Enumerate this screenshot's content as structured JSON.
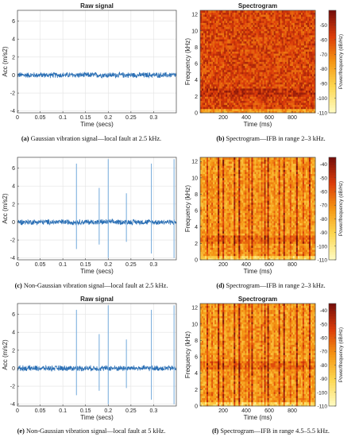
{
  "colors": {
    "signal": "#2a6fb5",
    "spec_high": "#7a1a10",
    "spec_low": "#fff2a8"
  },
  "panels": [
    {
      "caption_tag": "(a)",
      "caption_text": "Gaussian vibration signal—local fault at 2.5 kHz."
    },
    {
      "caption_tag": "(b)",
      "caption_text": "Spectrogram—IFB in range 2–3 kHz."
    },
    {
      "caption_tag": "(c)",
      "caption_text": "Non-Gaussian vibration signal—local fault at 2.5 kHz."
    },
    {
      "caption_tag": "(d)",
      "caption_text": "Spectrogram—IFB in range 2–3 kHz."
    },
    {
      "caption_tag": "(e)",
      "caption_text": "Non-Gaussian vibration signal—local fault at 5 kHz."
    },
    {
      "caption_tag": "(f)",
      "caption_text": "Spectrogram—IFB in range 4.5–5.5 kHz."
    }
  ],
  "chart_data": [
    {
      "id": "a",
      "type": "line",
      "title": "Raw signal",
      "xlabel": "Time (secs)",
      "ylabel": "Acc (m/s2)",
      "xlim": [
        0,
        0.35
      ],
      "ylim": [
        -4.2,
        7.2
      ],
      "xticks": [
        0,
        0.05,
        0.1,
        0.15,
        0.2,
        0.25,
        0.3
      ],
      "yticks": [
        -4,
        -2,
        0,
        2,
        4,
        6
      ],
      "grid": true,
      "noise_amplitude": 0.3,
      "impulses": []
    },
    {
      "id": "b",
      "type": "heatmap",
      "title": "Spectrogram",
      "xlabel": "Time (ms)",
      "ylabel": "Frequency (kHz)",
      "xlim": [
        0,
        1000
      ],
      "ylim": [
        0,
        12.5
      ],
      "xticks": [
        200,
        400,
        600,
        800
      ],
      "yticks": [
        0,
        2,
        4,
        6,
        8,
        10,
        12
      ],
      "colorbar_label": "Power/frequency (dB/Hz)",
      "clim": [
        -110,
        -40
      ],
      "colorbar_ticks": [
        -50,
        -60,
        -70,
        -80,
        -90,
        -100,
        -110
      ],
      "band_khz": [
        2,
        3
      ],
      "impulse_times_ms": []
    },
    {
      "id": "c",
      "type": "line",
      "title": "",
      "xlabel": "Time (secs)",
      "ylabel": "Acc (m/s2)",
      "xlim": [
        0,
        0.35
      ],
      "ylim": [
        -4.2,
        7.2
      ],
      "xticks": [
        0,
        0.05,
        0.1,
        0.15,
        0.2,
        0.25,
        0.3
      ],
      "yticks": [
        -4,
        -2,
        0,
        2,
        4,
        6
      ],
      "grid": true,
      "noise_amplitude": 0.3,
      "impulses": [
        {
          "t": 0.13,
          "peak": 6.5,
          "trough": -3.0
        },
        {
          "t": 0.18,
          "peak": 3.8,
          "trough": -2.5
        },
        {
          "t": 0.2,
          "peak": 7.0,
          "trough": -4.0
        },
        {
          "t": 0.24,
          "peak": 3.2,
          "trough": -2.2
        },
        {
          "t": 0.295,
          "peak": 6.5,
          "trough": -3.5
        },
        {
          "t": 0.345,
          "peak": 7.0,
          "trough": -4.0
        }
      ]
    },
    {
      "id": "d",
      "type": "heatmap",
      "title": "",
      "xlabel": "Time (ms)",
      "ylabel": "Frequency (kHz)",
      "xlim": [
        0,
        1000
      ],
      "ylim": [
        0,
        12.5
      ],
      "xticks": [
        200,
        400,
        600,
        800
      ],
      "yticks": [
        0,
        2,
        4,
        6,
        8,
        10,
        12
      ],
      "colorbar_label": "Power/frequency (dB/Hz)",
      "clim": [
        -110,
        -35
      ],
      "colorbar_ticks": [
        -40,
        -50,
        -60,
        -70,
        -80,
        -90,
        -100,
        -110
      ],
      "band_khz": [
        2,
        3
      ],
      "impulse_times_ms": [
        60,
        110,
        160,
        200,
        250,
        300,
        340,
        390,
        420,
        450,
        500,
        530,
        560,
        590,
        640,
        690,
        730,
        780,
        840,
        900,
        950
      ]
    },
    {
      "id": "e",
      "type": "line",
      "title": "Raw signal",
      "xlabel": "Time (secs)",
      "ylabel": "Acc (m/s2)",
      "xlim": [
        0,
        0.35
      ],
      "ylim": [
        -4.2,
        7.2
      ],
      "xticks": [
        0,
        0.05,
        0.1,
        0.15,
        0.2,
        0.25,
        0.3
      ],
      "yticks": [
        -4,
        -2,
        0,
        2,
        4,
        6
      ],
      "grid": true,
      "noise_amplitude": 0.3,
      "impulses": [
        {
          "t": 0.13,
          "peak": 6.5,
          "trough": -3.0
        },
        {
          "t": 0.18,
          "peak": 3.8,
          "trough": -2.5
        },
        {
          "t": 0.2,
          "peak": 7.0,
          "trough": -4.0
        },
        {
          "t": 0.24,
          "peak": 3.2,
          "trough": -2.2
        },
        {
          "t": 0.295,
          "peak": 6.5,
          "trough": -3.5
        },
        {
          "t": 0.345,
          "peak": 7.0,
          "trough": -4.0
        }
      ]
    },
    {
      "id": "f",
      "type": "heatmap",
      "title": "Spectrogram",
      "xlabel": "Time (ms)",
      "ylabel": "Frequency (kHz)",
      "xlim": [
        0,
        1000
      ],
      "ylim": [
        0,
        12.5
      ],
      "xticks": [
        200,
        400,
        600,
        800
      ],
      "yticks": [
        0,
        2,
        4,
        6,
        8,
        10,
        12
      ],
      "colorbar_label": "Power/frequency (dB/Hz)",
      "clim": [
        -110,
        -35
      ],
      "colorbar_ticks": [
        -40,
        -50,
        -60,
        -70,
        -80,
        -90,
        -100,
        -110
      ],
      "band_khz": [
        4.5,
        5.5
      ],
      "impulse_times_ms": [
        60,
        110,
        160,
        200,
        250,
        300,
        340,
        390,
        420,
        450,
        500,
        530,
        560,
        590,
        640,
        690,
        730,
        780,
        840,
        900,
        950
      ]
    }
  ]
}
